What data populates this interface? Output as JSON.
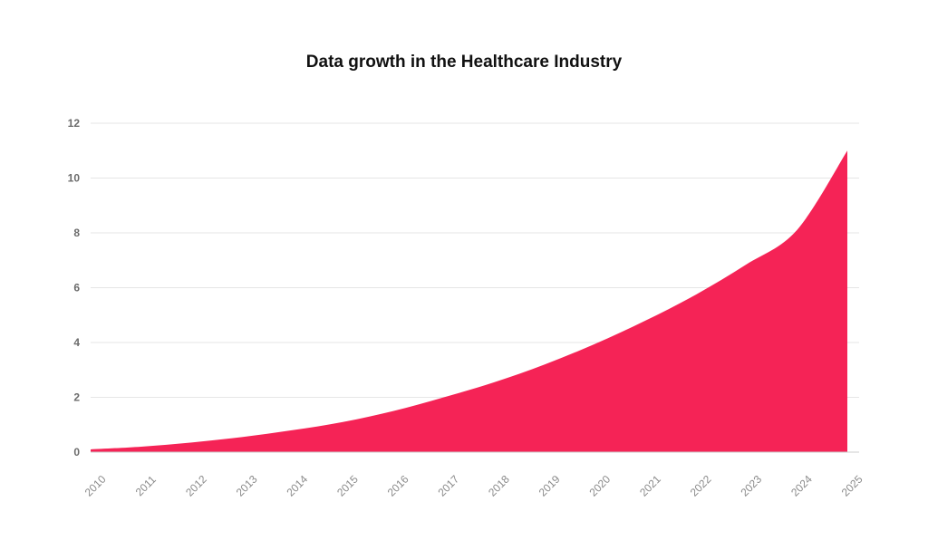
{
  "chart_data": {
    "type": "area",
    "title": "Data growth in the Healthcare Industry",
    "xlabel": "",
    "ylabel": "",
    "x": [
      "2010",
      "2011",
      "2012",
      "2013",
      "2014",
      "2015",
      "2016",
      "2017",
      "2018",
      "2019",
      "2020",
      "2021",
      "2022",
      "2023",
      "2024",
      "2025"
    ],
    "series": [
      {
        "values": [
          0.1,
          0.2,
          0.35,
          0.55,
          0.8,
          1.1,
          1.5,
          2.0,
          2.55,
          3.2,
          3.95,
          4.8,
          5.75,
          6.85,
          8.1,
          11.0
        ]
      }
    ],
    "y_ticks": [
      "0",
      "2",
      "4",
      "6",
      "8",
      "10",
      "12"
    ],
    "ylim": [
      0,
      12
    ],
    "grid": true,
    "legend": "none",
    "colors": {
      "fill": "#f52356",
      "grid": "#e6e6e6",
      "axis": "#cccccc"
    }
  }
}
